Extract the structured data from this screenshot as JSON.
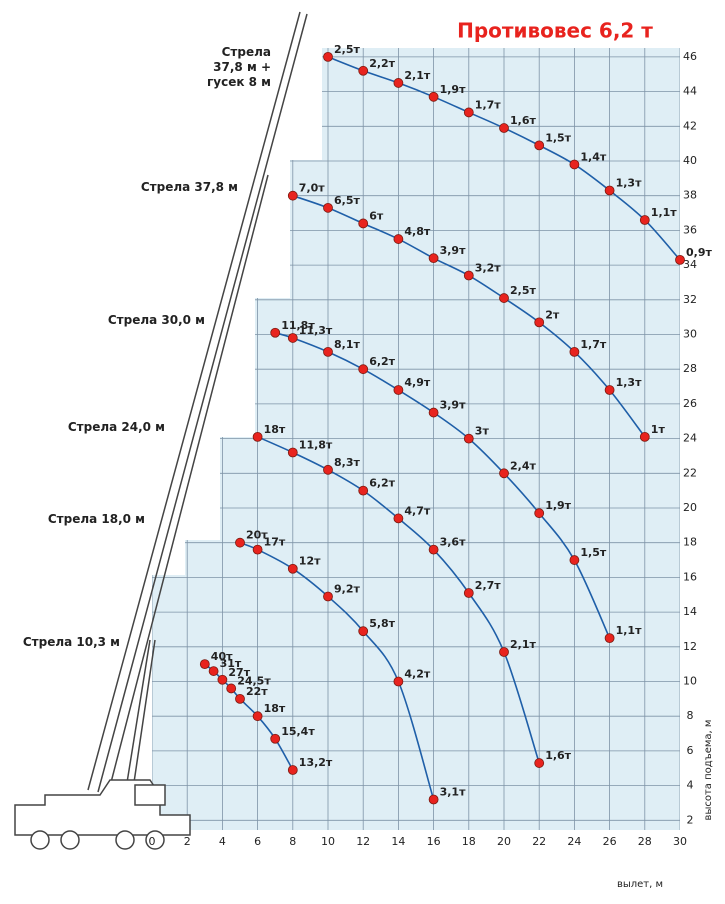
{
  "chart_data": {
    "type": "line",
    "title": "Противовес 6,2 т",
    "x_label": "вылет, м",
    "y_label": "высота подъема, м",
    "xlim": [
      0,
      30
    ],
    "ylim": [
      0,
      47
    ],
    "xticks": [
      0,
      2,
      4,
      6,
      8,
      10,
      12,
      14,
      16,
      18,
      20,
      22,
      24,
      26,
      28,
      30
    ],
    "yticks": [
      2,
      4,
      6,
      8,
      10,
      12,
      14,
      16,
      18,
      20,
      22,
      24,
      26,
      28,
      30,
      32,
      34,
      36,
      38,
      40,
      42,
      44,
      46
    ],
    "grid": true,
    "line_color": "#1f5fa8",
    "point_color": "#e8231e",
    "series": [
      {
        "name": "Стрела 37,8 м + гусек 8 м",
        "x": [
          10,
          12,
          14,
          16,
          18,
          20,
          22,
          24,
          26,
          28,
          30
        ],
        "values": [
          46,
          45.2,
          44.5,
          43.7,
          42.8,
          41.9,
          40.9,
          39.8,
          38.3,
          36.6,
          34.3
        ],
        "loads": [
          "2,5т",
          "2,2т",
          "2,1т",
          "1,9т",
          "1,7т",
          "1,6т",
          "1,5т",
          "1,4т",
          "1,3т",
          "1,1т",
          "0,9т"
        ]
      },
      {
        "name": "Стрела 37,8 м",
        "x": [
          8,
          10,
          12,
          14,
          16,
          18,
          20,
          22,
          24,
          26,
          28
        ],
        "values": [
          38,
          37.3,
          36.4,
          35.5,
          34.4,
          33.4,
          32.1,
          30.7,
          29,
          26.8,
          24.1
        ],
        "loads": [
          "7,0т",
          "6,5т",
          "6т",
          "4,8т",
          "3,9т",
          "3,2т",
          "2,5т",
          "2т",
          "1,7т",
          "1,3т",
          "1т"
        ]
      },
      {
        "name": "Стрела 30,0 м",
        "x": [
          7,
          8,
          10,
          12,
          14,
          16,
          18,
          20,
          22,
          24,
          26
        ],
        "values": [
          30.1,
          29.8,
          29,
          28,
          26.8,
          25.5,
          24,
          22,
          19.7,
          17,
          12.5
        ],
        "loads": [
          "11,8т",
          "11,3т",
          "8,1т",
          "6,2т",
          "4,9т",
          "3,9т",
          "3т",
          "2,4т",
          "1,9т",
          "1,5т",
          "1,1т"
        ]
      },
      {
        "name": "Стрела 24,0 м",
        "x": [
          6,
          8,
          10,
          12,
          14,
          16,
          18,
          20,
          22
        ],
        "values": [
          24.1,
          23.2,
          22.2,
          21,
          19.4,
          17.6,
          15.1,
          11.7,
          5.3
        ],
        "loads": [
          "18т",
          "11,8т",
          "8,3т",
          "6,2т",
          "4,7т",
          "3,6т",
          "2,7т",
          "2,1т",
          "1,6т"
        ]
      },
      {
        "name": "Стрела 18,0 м",
        "x": [
          5,
          6,
          8,
          10,
          12,
          14,
          16
        ],
        "values": [
          18,
          17.6,
          16.5,
          14.9,
          12.9,
          10,
          3.2
        ],
        "loads": [
          "20т",
          "17т",
          "12т",
          "9,2т",
          "5,8т",
          "4,2т",
          "3,1т"
        ]
      },
      {
        "name": "Стрела 10,3 м",
        "x": [
          3,
          3.5,
          4,
          4.5,
          5,
          6,
          7,
          8
        ],
        "values": [
          11,
          10.6,
          10.1,
          9.6,
          9,
          8,
          6.7,
          4.9
        ],
        "loads": [
          "40т",
          "31т",
          "27т",
          "24,5т",
          "22т",
          "18т",
          "15,4т",
          "13,2т"
        ]
      }
    ]
  }
}
